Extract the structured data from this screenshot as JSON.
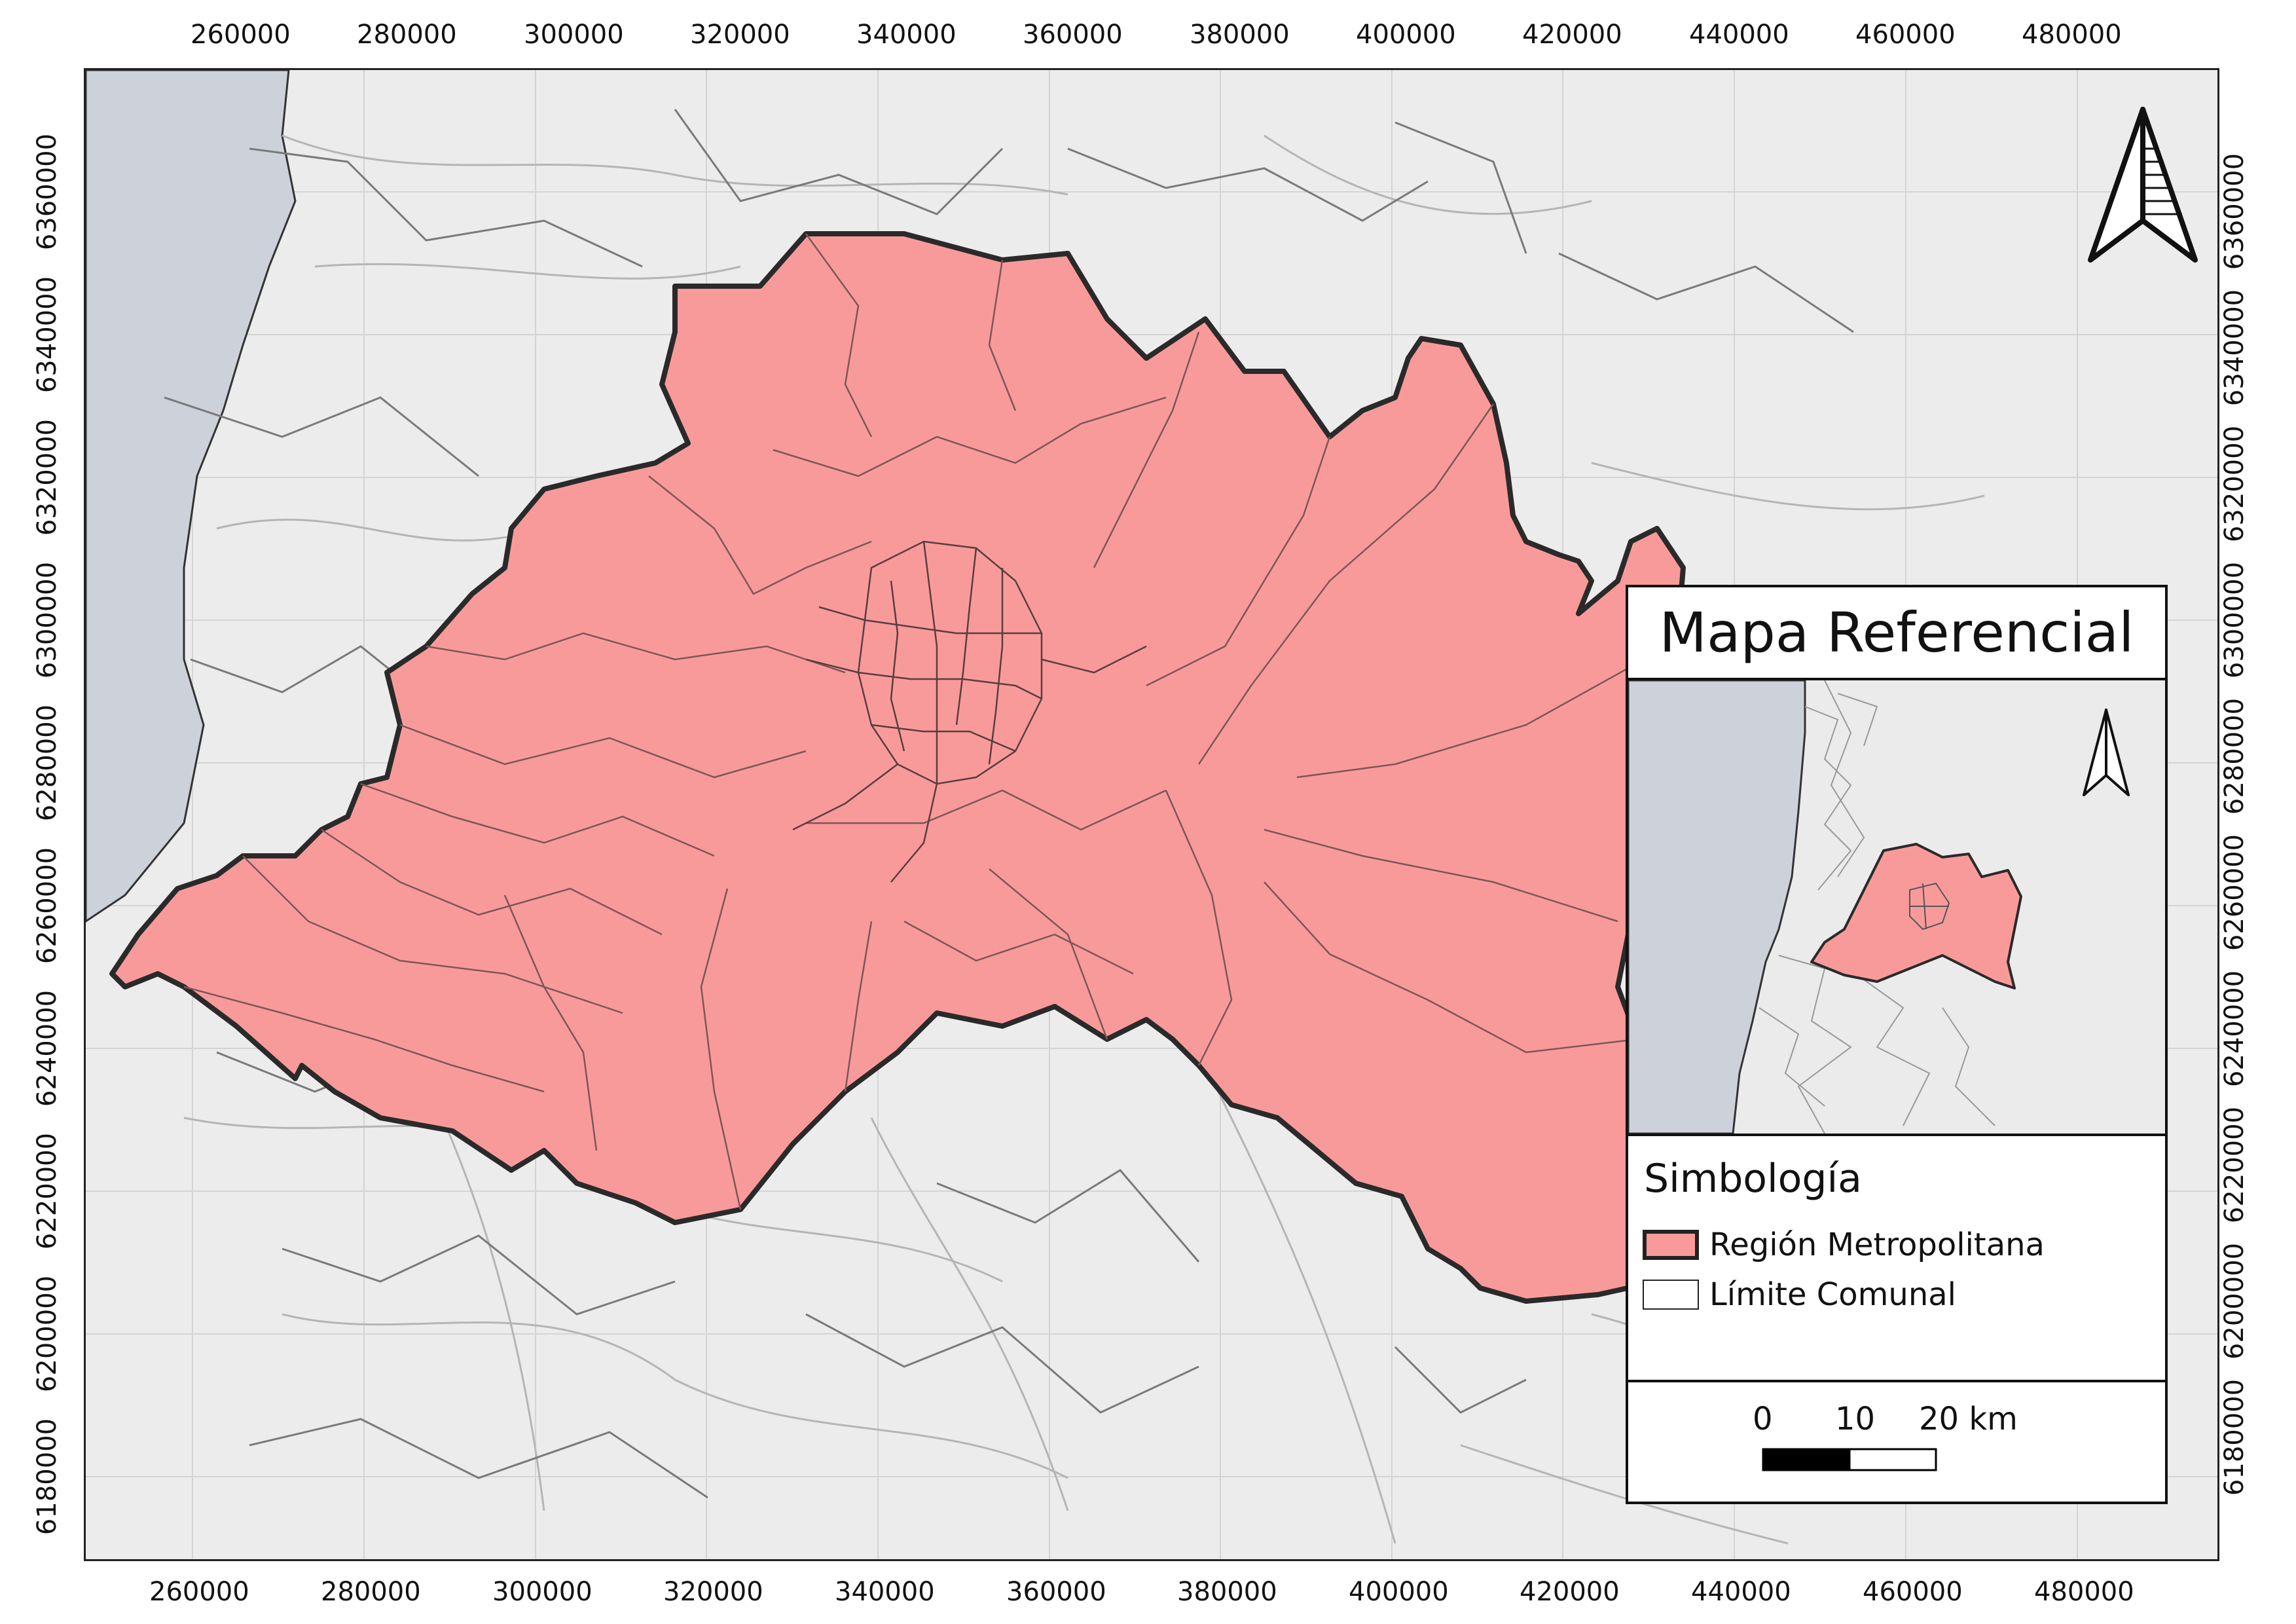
{
  "axes": {
    "x_ticks": [
      "260000",
      "280000",
      "300000",
      "320000",
      "340000",
      "360000",
      "380000",
      "400000",
      "420000",
      "440000",
      "460000",
      "480000"
    ],
    "y_ticks": [
      "6360000",
      "6340000",
      "6320000",
      "6300000",
      "6280000",
      "6260000",
      "6240000",
      "6220000",
      "6200000",
      "6180000"
    ]
  },
  "inset": {
    "title": "Mapa Referencial"
  },
  "legend": {
    "title": "Simbología",
    "items": [
      {
        "label": "Región Metropolitana",
        "fill": "#f99a9a",
        "stroke": "#222222"
      },
      {
        "label": "Límite Comunal",
        "fill": "#ffffff",
        "stroke": "#222222"
      }
    ]
  },
  "scale_bar": {
    "labels": [
      "0",
      "10",
      "20 km"
    ]
  },
  "colors": {
    "region_fill": "#f99a9a",
    "region_outline": "#2a2a2a",
    "basemap": "#ececec",
    "sea": "#cfd4dc",
    "roads": "#b8b8b8"
  },
  "icons": [
    "north-arrow-icon"
  ]
}
